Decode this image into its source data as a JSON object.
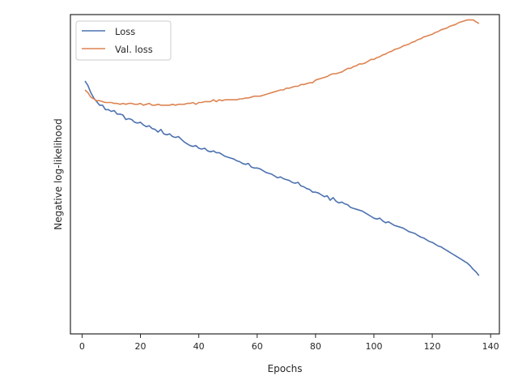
{
  "chart_data": {
    "type": "line",
    "title": "",
    "xlabel": "Epochs",
    "ylabel": "Negative log-likelihood",
    "xlim": [
      -4,
      143
    ],
    "ylim": [
      -0.28,
      3.28
    ],
    "xticks": [
      0,
      20,
      40,
      60,
      80,
      100,
      120,
      140
    ],
    "yticks_visible": false,
    "grid": false,
    "legend": {
      "position": "top-left"
    },
    "series": [
      {
        "name": "Loss",
        "color": "#4c72b0",
        "x": [
          1,
          2,
          3,
          4,
          5,
          6,
          7,
          8,
          9,
          10,
          11,
          12,
          13,
          14,
          15,
          16,
          17,
          18,
          19,
          20,
          21,
          22,
          23,
          24,
          25,
          26,
          27,
          28,
          29,
          30,
          31,
          32,
          33,
          34,
          35,
          36,
          37,
          38,
          39,
          40,
          41,
          42,
          43,
          44,
          45,
          46,
          47,
          48,
          49,
          50,
          51,
          52,
          53,
          54,
          55,
          56,
          57,
          58,
          59,
          60,
          61,
          62,
          63,
          64,
          65,
          66,
          67,
          68,
          69,
          70,
          71,
          72,
          73,
          74,
          75,
          76,
          77,
          78,
          79,
          80,
          81,
          82,
          83,
          84,
          85,
          86,
          87,
          88,
          89,
          90,
          91,
          92,
          93,
          94,
          95,
          96,
          97,
          98,
          99,
          100,
          101,
          102,
          103,
          104,
          105,
          106,
          107,
          108,
          109,
          110,
          111,
          112,
          113,
          114,
          115,
          116,
          117,
          118,
          119,
          120,
          121,
          122,
          123,
          124,
          125,
          126,
          127,
          128,
          129,
          130,
          131,
          132,
          133,
          134,
          135,
          136
        ],
        "y": [
          2.54,
          2.49,
          2.41,
          2.35,
          2.31,
          2.27,
          2.27,
          2.22,
          2.22,
          2.2,
          2.21,
          2.17,
          2.17,
          2.16,
          2.11,
          2.12,
          2.11,
          2.08,
          2.07,
          2.08,
          2.05,
          2.03,
          2.04,
          2.01,
          2.0,
          1.97,
          2.0,
          1.95,
          1.94,
          1.95,
          1.92,
          1.91,
          1.92,
          1.89,
          1.86,
          1.84,
          1.82,
          1.81,
          1.82,
          1.79,
          1.78,
          1.79,
          1.76,
          1.75,
          1.76,
          1.74,
          1.74,
          1.72,
          1.7,
          1.69,
          1.68,
          1.67,
          1.65,
          1.64,
          1.62,
          1.61,
          1.62,
          1.58,
          1.57,
          1.57,
          1.56,
          1.54,
          1.52,
          1.51,
          1.5,
          1.48,
          1.46,
          1.47,
          1.45,
          1.44,
          1.43,
          1.41,
          1.4,
          1.41,
          1.37,
          1.36,
          1.34,
          1.33,
          1.3,
          1.3,
          1.29,
          1.27,
          1.25,
          1.26,
          1.21,
          1.24,
          1.2,
          1.18,
          1.19,
          1.17,
          1.16,
          1.13,
          1.12,
          1.11,
          1.1,
          1.09,
          1.07,
          1.05,
          1.03,
          1.01,
          1.0,
          1.01,
          0.98,
          0.96,
          0.97,
          0.95,
          0.93,
          0.92,
          0.91,
          0.9,
          0.88,
          0.86,
          0.85,
          0.84,
          0.82,
          0.8,
          0.79,
          0.77,
          0.75,
          0.74,
          0.72,
          0.7,
          0.69,
          0.67,
          0.65,
          0.63,
          0.61,
          0.59,
          0.57,
          0.55,
          0.53,
          0.51,
          0.48,
          0.44,
          0.41,
          0.37
        ],
        "note": "approximate"
      },
      {
        "name": "Val. loss",
        "color": "#dd8452",
        "x": [
          1,
          2,
          3,
          4,
          5,
          6,
          7,
          8,
          9,
          10,
          11,
          12,
          13,
          14,
          15,
          16,
          17,
          18,
          19,
          20,
          21,
          22,
          23,
          24,
          25,
          26,
          27,
          28,
          29,
          30,
          31,
          32,
          33,
          34,
          35,
          36,
          37,
          38,
          39,
          40,
          41,
          42,
          43,
          44,
          45,
          46,
          47,
          48,
          49,
          50,
          51,
          52,
          53,
          54,
          55,
          56,
          57,
          58,
          59,
          60,
          61,
          62,
          63,
          64,
          65,
          66,
          67,
          68,
          69,
          70,
          71,
          72,
          73,
          74,
          75,
          76,
          77,
          78,
          79,
          80,
          81,
          82,
          83,
          84,
          85,
          86,
          87,
          88,
          89,
          90,
          91,
          92,
          93,
          94,
          95,
          96,
          97,
          98,
          99,
          100,
          101,
          102,
          103,
          104,
          105,
          106,
          107,
          108,
          109,
          110,
          111,
          112,
          113,
          114,
          115,
          116,
          117,
          118,
          119,
          120,
          121,
          122,
          123,
          124,
          125,
          126,
          127,
          128,
          129,
          130,
          131,
          132,
          133,
          134,
          135,
          136
        ],
        "y": [
          2.44,
          2.41,
          2.36,
          2.34,
          2.32,
          2.32,
          2.31,
          2.3,
          2.3,
          2.3,
          2.29,
          2.29,
          2.28,
          2.29,
          2.28,
          2.29,
          2.29,
          2.28,
          2.28,
          2.29,
          2.27,
          2.28,
          2.29,
          2.27,
          2.27,
          2.28,
          2.27,
          2.27,
          2.27,
          2.27,
          2.28,
          2.27,
          2.28,
          2.28,
          2.28,
          2.29,
          2.29,
          2.3,
          2.28,
          2.3,
          2.3,
          2.31,
          2.31,
          2.31,
          2.33,
          2.31,
          2.33,
          2.32,
          2.33,
          2.33,
          2.33,
          2.33,
          2.33,
          2.34,
          2.34,
          2.35,
          2.35,
          2.36,
          2.37,
          2.37,
          2.37,
          2.38,
          2.39,
          2.4,
          2.41,
          2.42,
          2.43,
          2.44,
          2.44,
          2.46,
          2.46,
          2.47,
          2.48,
          2.48,
          2.5,
          2.5,
          2.51,
          2.52,
          2.52,
          2.55,
          2.56,
          2.57,
          2.58,
          2.59,
          2.61,
          2.62,
          2.62,
          2.63,
          2.64,
          2.66,
          2.68,
          2.68,
          2.7,
          2.71,
          2.73,
          2.73,
          2.74,
          2.76,
          2.78,
          2.78,
          2.8,
          2.81,
          2.83,
          2.84,
          2.86,
          2.87,
          2.89,
          2.9,
          2.91,
          2.93,
          2.94,
          2.95,
          2.97,
          2.98,
          3.0,
          3.01,
          3.03,
          3.04,
          3.05,
          3.06,
          3.08,
          3.09,
          3.11,
          3.12,
          3.13,
          3.15,
          3.16,
          3.17,
          3.19,
          3.2,
          3.21,
          3.22,
          3.22,
          3.22,
          3.2,
          3.18
        ],
        "note": "approximate"
      }
    ]
  }
}
